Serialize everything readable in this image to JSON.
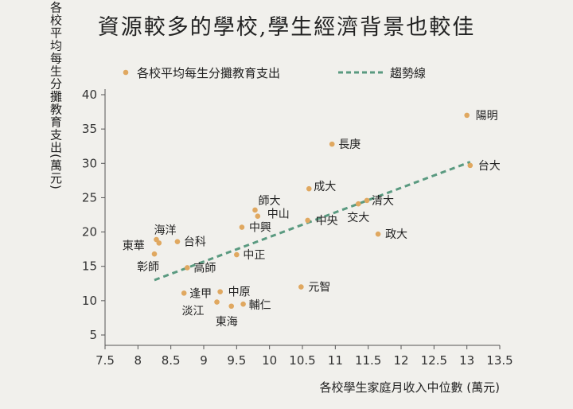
{
  "chart_data": {
    "type": "scatter",
    "title": "資源較多的學校,學生經濟背景也較佳",
    "xlabel": "各校學生家庭月收入中位數 (萬元)",
    "ylabel": "各校平均每生分攤教育支出(萬元)",
    "xlim": [
      7.5,
      13.5
    ],
    "ylim": [
      5,
      40
    ],
    "x_ticks": [
      "7.5",
      "8",
      "8.5",
      "9",
      "9.5",
      "10",
      "10.5",
      "11",
      "11.5",
      "12",
      "12.5",
      "13",
      "13.5"
    ],
    "y_ticks": [
      "5",
      "10",
      "15",
      "20",
      "25",
      "30",
      "35",
      "40"
    ],
    "legend": {
      "placement": "top-left"
    },
    "colors": {
      "points": "#e0a860",
      "trend": "#5a9a80",
      "background": "#f1f0ec"
    },
    "series": [
      {
        "name": "各校平均每生分攤教育支出",
        "points": [
          {
            "label": "陽明",
            "x": 13.0,
            "y": 37.0
          },
          {
            "label": "台大",
            "x": 13.05,
            "y": 29.7
          },
          {
            "label": "長庚",
            "x": 10.95,
            "y": 32.8
          },
          {
            "label": "成大",
            "x": 10.6,
            "y": 26.3
          },
          {
            "label": "清大",
            "x": 11.48,
            "y": 24.6
          },
          {
            "label": "交大",
            "x": 11.35,
            "y": 24.1
          },
          {
            "label": "政大",
            "x": 11.65,
            "y": 19.7
          },
          {
            "label": "師大",
            "x": 9.78,
            "y": 23.2
          },
          {
            "label": "中山",
            "x": 9.82,
            "y": 22.3
          },
          {
            "label": "中央",
            "x": 10.58,
            "y": 21.7
          },
          {
            "label": "中興",
            "x": 9.58,
            "y": 20.7
          },
          {
            "label": "海洋",
            "x": 8.28,
            "y": 18.9
          },
          {
            "label": "東華",
            "x": 8.32,
            "y": 18.4
          },
          {
            "label": "台科",
            "x": 8.6,
            "y": 18.6
          },
          {
            "label": "中正",
            "x": 9.5,
            "y": 16.7
          },
          {
            "label": "彰師",
            "x": 8.25,
            "y": 16.8
          },
          {
            "label": "高師",
            "x": 8.75,
            "y": 14.8
          },
          {
            "label": "元智",
            "x": 10.48,
            "y": 12.0
          },
          {
            "label": "逢甲",
            "x": 8.7,
            "y": 11.1
          },
          {
            "label": "中原",
            "x": 9.25,
            "y": 11.3
          },
          {
            "label": "淡江",
            "x": 9.2,
            "y": 9.8
          },
          {
            "label": "東海",
            "x": 9.42,
            "y": 9.2
          },
          {
            "label": "輔仁",
            "x": 9.6,
            "y": 9.5
          }
        ]
      },
      {
        "name": "趨勢線",
        "line": [
          {
            "x": 8.25,
            "y": 13.0
          },
          {
            "x": 13.05,
            "y": 30.2
          }
        ]
      }
    ]
  }
}
